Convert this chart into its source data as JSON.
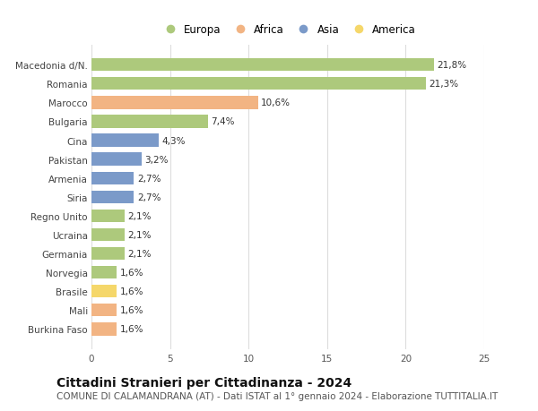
{
  "categories": [
    "Burkina Faso",
    "Mali",
    "Brasile",
    "Norvegia",
    "Germania",
    "Ucraina",
    "Regno Unito",
    "Siria",
    "Armenia",
    "Pakistan",
    "Cina",
    "Bulgaria",
    "Marocco",
    "Romania",
    "Macedonia d/N."
  ],
  "values": [
    1.6,
    1.6,
    1.6,
    1.6,
    2.1,
    2.1,
    2.1,
    2.7,
    2.7,
    3.2,
    4.3,
    7.4,
    10.6,
    21.3,
    21.8
  ],
  "labels": [
    "1,6%",
    "1,6%",
    "1,6%",
    "1,6%",
    "2,1%",
    "2,1%",
    "2,1%",
    "2,7%",
    "2,7%",
    "3,2%",
    "4,3%",
    "7,4%",
    "10,6%",
    "21,3%",
    "21,8%"
  ],
  "continents": [
    "Africa",
    "Africa",
    "America",
    "Europa",
    "Europa",
    "Europa",
    "Europa",
    "Asia",
    "Asia",
    "Asia",
    "Asia",
    "Europa",
    "Africa",
    "Europa",
    "Europa"
  ],
  "colors": {
    "Europa": "#adc97c",
    "Africa": "#f2b483",
    "Asia": "#7b9ac9",
    "America": "#f5d76a"
  },
  "legend_order": [
    "Europa",
    "Africa",
    "Asia",
    "America"
  ],
  "title": "Cittadini Stranieri per Cittadinanza - 2024",
  "subtitle": "COMUNE DI CALAMANDRANA (AT) - Dati ISTAT al 1° gennaio 2024 - Elaborazione TUTTITALIA.IT",
  "xlim": [
    0,
    25
  ],
  "xticks": [
    0,
    5,
    10,
    15,
    20,
    25
  ],
  "background_color": "#ffffff",
  "grid_color": "#dddddd",
  "title_fontsize": 10,
  "subtitle_fontsize": 7.5,
  "label_fontsize": 7.5,
  "tick_fontsize": 7.5,
  "legend_fontsize": 8.5,
  "bar_height": 0.68
}
